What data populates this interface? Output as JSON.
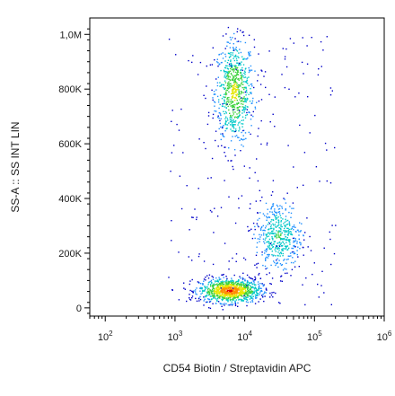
{
  "chart_data": {
    "type": "scatter",
    "subtype": "flow-cytometry-density-dot-plot",
    "title": "",
    "xlabel": "CD54 Biotin / Streptavidin APC",
    "ylabel": "SS-A :: SS INT LIN",
    "x_scale": "log",
    "xlim": [
      60,
      1000000
    ],
    "ylim": [
      -30000,
      1060000
    ],
    "x_ticks": [
      {
        "value": 100,
        "base": "10",
        "exp": "2"
      },
      {
        "value": 1000,
        "base": "10",
        "exp": "3"
      },
      {
        "value": 10000,
        "base": "10",
        "exp": "4"
      },
      {
        "value": 100000,
        "base": "10",
        "exp": "5"
      },
      {
        "value": 1000000,
        "base": "10",
        "exp": "6"
      }
    ],
    "y_ticks": [
      {
        "value": 0,
        "label": "0"
      },
      {
        "value": 200000,
        "label": "200K"
      },
      {
        "value": 400000,
        "label": "400K"
      },
      {
        "value": 600000,
        "label": "600K"
      },
      {
        "value": 800000,
        "label": "800K"
      },
      {
        "value": 1000000,
        "label": "1,0M"
      }
    ],
    "grid": false,
    "legend": "none",
    "colormap": [
      "#0000c8",
      "#1e90ff",
      "#00c8c8",
      "#3cd23c",
      "#e6e600",
      "#ff8c00",
      "#e60000"
    ],
    "populations": [
      {
        "x_center": 7000,
        "x_spread_log": 0.14,
        "y_center": 790000,
        "y_spread": 95000,
        "density": 0.62
      },
      {
        "x_center": 6000,
        "x_spread_log": 0.22,
        "y_center": 65000,
        "y_spread": 22000,
        "density": 0.9
      },
      {
        "x_center": 30000,
        "x_spread_log": 0.17,
        "y_center": 265000,
        "y_spread": 65000,
        "density": 0.42
      }
    ]
  }
}
